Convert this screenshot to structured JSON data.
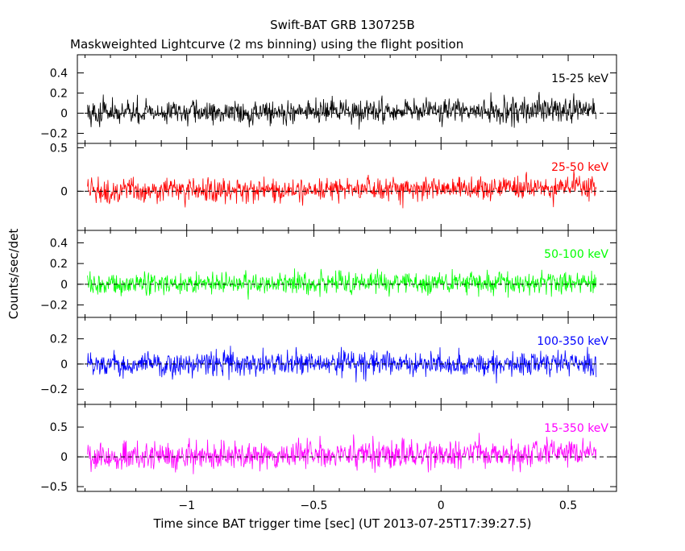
{
  "title": "Swift-BAT GRB 130725B",
  "subtitle": "Maskweighted Lightcurve (2 ms binning) using the flight position",
  "ylabel": "Counts/sec/det",
  "xlabel": "Time since BAT trigger time [sec] (UT 2013-07-25T17:39:27.5)",
  "chart_data": {
    "type": "line",
    "title": "Swift-BAT GRB 130725B",
    "subtitle": "Maskweighted Lightcurve (2 ms binning) using the flight position",
    "xlabel": "Time since BAT trigger time [sec] (UT 2013-07-25T17:39:27.5)",
    "ylabel": "Counts/sec/det",
    "xlim": [
      -1.43,
      0.69
    ],
    "x_range": [
      -1.39,
      0.61
    ],
    "bin_width_sec": 0.002,
    "x_ticks": [
      -1,
      -0.5,
      0,
      0.5
    ],
    "x_tick_labels": [
      "−1",
      "−0.5",
      "0",
      "0.5"
    ],
    "grid": false,
    "panels": [
      {
        "name": "15-25 keV",
        "color": "#000000",
        "ylim": [
          -0.3,
          0.58
        ],
        "y_ticks": [
          -0.2,
          0,
          0.2,
          0.4
        ],
        "y_tick_labels": [
          "−0.2",
          "0",
          "0.2",
          "0.4"
        ],
        "noise_sigma": 0.11,
        "trend": [
          0.0,
          0.03
        ]
      },
      {
        "name": "25-50 keV",
        "color": "#ff0000",
        "ylim": [
          -0.45,
          0.55
        ],
        "y_ticks": [
          0,
          0.5
        ],
        "y_tick_labels": [
          "0",
          "0.5"
        ],
        "noise_sigma": 0.13,
        "trend": [
          0.0,
          0.05
        ]
      },
      {
        "name": "50-100 keV",
        "color": "#00ff00",
        "ylim": [
          -0.32,
          0.52
        ],
        "y_ticks": [
          -0.2,
          0,
          0.2,
          0.4
        ],
        "y_tick_labels": [
          "−0.2",
          "0",
          "0.2",
          "0.4"
        ],
        "noise_sigma": 0.1,
        "trend": [
          0.0,
          0.02
        ]
      },
      {
        "name": "100-350 keV",
        "color": "#0000ff",
        "ylim": [
          -0.32,
          0.37
        ],
        "y_ticks": [
          -0.2,
          0,
          0.2
        ],
        "y_tick_labels": [
          "−0.2",
          "0",
          "0.2"
        ],
        "noise_sigma": 0.09,
        "trend": [
          0.0,
          0.0
        ]
      },
      {
        "name": "15-350 keV",
        "color": "#ff00ff",
        "ylim": [
          -0.58,
          0.88
        ],
        "y_ticks": [
          -0.5,
          0,
          0.5
        ],
        "y_tick_labels": [
          "−0.5",
          "0",
          "0.5"
        ],
        "noise_sigma": 0.22,
        "trend": [
          0.0,
          0.08
        ]
      }
    ]
  }
}
